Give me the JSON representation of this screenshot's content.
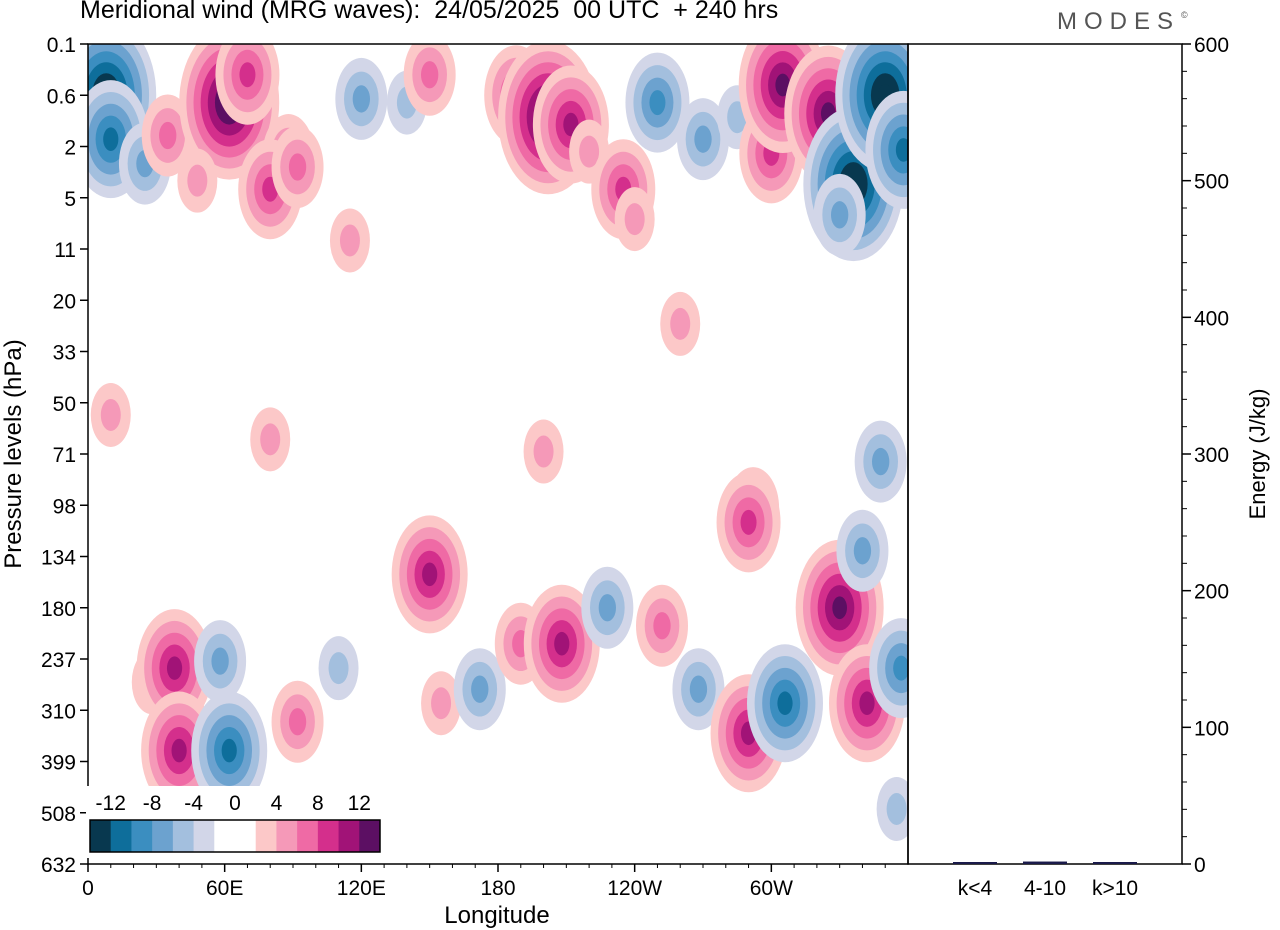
{
  "header": {
    "title": "Meridional wind (MRG waves):  24/05/2025  00 UTC  + 240 hrs",
    "brand": "MODES",
    "brand_mark": "©"
  },
  "colors": {
    "neg": [
      "#08384f",
      "#0e6e9b",
      "#3b8ec0",
      "#6ca2cf",
      "#a3bfde",
      "#d2d6e8"
    ],
    "pos": [
      "#fcc8c8",
      "#f599b8",
      "#ef6aa5",
      "#d42f8c",
      "#a11377",
      "#5c0f63"
    ],
    "zero": "#ffffff"
  },
  "chart_data": [
    {
      "type": "heatmap",
      "title": "Meridional wind (MRG waves):  24/05/2025  00 UTC  + 240 hrs",
      "xlabel": "Longitude",
      "ylabel": "Pressure levels (hPa)",
      "x_ticks": [
        "0",
        "60E",
        "120E",
        "180",
        "120W",
        "60W"
      ],
      "x_tick_degrees": [
        0,
        60,
        120,
        180,
        240,
        300
      ],
      "xlim": [
        0,
        360
      ],
      "y_ticks": [
        "0.1",
        "0.6",
        "2",
        "5",
        "11",
        "20",
        "33",
        "50",
        "71",
        "98",
        "134",
        "180",
        "237",
        "310",
        "399",
        "508",
        "632"
      ],
      "colorbar": {
        "labels": [
          "-12",
          "-8",
          "-4",
          "0",
          "4",
          "8",
          "12"
        ],
        "levels": [
          -14,
          -12,
          -10,
          -8,
          -6,
          -4,
          -2,
          0,
          2,
          4,
          6,
          8,
          10,
          12,
          14
        ]
      },
      "features": [
        {
          "lon": 8,
          "level": 0.6,
          "value": -14
        },
        {
          "lon": 10,
          "level": 1.8,
          "value": -10
        },
        {
          "lon": 25,
          "level": 3,
          "value": -6
        },
        {
          "lon": 35,
          "level": 1.7,
          "value": 6
        },
        {
          "lon": 62,
          "level": 0.8,
          "value": 14
        },
        {
          "lon": 70,
          "level": 0.4,
          "value": 8
        },
        {
          "lon": 48,
          "level": 4,
          "value": 4
        },
        {
          "lon": 88,
          "level": 2.5,
          "value": 6
        },
        {
          "lon": 80,
          "level": 4.5,
          "value": 8
        },
        {
          "lon": 92,
          "level": 3.2,
          "value": 6
        },
        {
          "lon": 120,
          "level": 0.7,
          "value": -6
        },
        {
          "lon": 140,
          "level": 0.8,
          "value": -4
        },
        {
          "lon": 150,
          "level": 0.4,
          "value": 6
        },
        {
          "lon": 188,
          "level": 0.6,
          "value": 8
        },
        {
          "lon": 202,
          "level": 1.2,
          "value": 14
        },
        {
          "lon": 212,
          "level": 1.4,
          "value": 10
        },
        {
          "lon": 220,
          "level": 2.3,
          "value": 4
        },
        {
          "lon": 235,
          "level": 4.5,
          "value": 8
        },
        {
          "lon": 240,
          "level": 7.5,
          "value": 4
        },
        {
          "lon": 250,
          "level": 0.8,
          "value": -8
        },
        {
          "lon": 270,
          "level": 1.8,
          "value": -6
        },
        {
          "lon": 285,
          "level": 1.2,
          "value": -4
        },
        {
          "lon": 300,
          "level": 2.4,
          "value": 8
        },
        {
          "lon": 305,
          "level": 0.5,
          "value": 12
        },
        {
          "lon": 325,
          "level": 1.1,
          "value": 12
        },
        {
          "lon": 336,
          "level": 4.2,
          "value": -14
        },
        {
          "lon": 350,
          "level": 0.6,
          "value": -14
        },
        {
          "lon": 358,
          "level": 2.2,
          "value": -10
        },
        {
          "lon": 330,
          "level": 7,
          "value": -6
        },
        {
          "lon": 115,
          "level": 10,
          "value": 4
        },
        {
          "lon": 260,
          "level": 26,
          "value": 4
        },
        {
          "lon": 10,
          "level": 55,
          "value": 4
        },
        {
          "lon": 80,
          "level": 65,
          "value": 4
        },
        {
          "lon": 200,
          "level": 70,
          "value": 4
        },
        {
          "lon": 292,
          "level": 100,
          "value": 6
        },
        {
          "lon": 348,
          "level": 75,
          "value": -6
        },
        {
          "lon": 28,
          "level": 270,
          "value": 4
        },
        {
          "lon": 38,
          "level": 250,
          "value": 10
        },
        {
          "lon": 40,
          "level": 380,
          "value": 10
        },
        {
          "lon": 58,
          "level": 240,
          "value": -6
        },
        {
          "lon": 62,
          "level": 380,
          "value": -10
        },
        {
          "lon": 92,
          "level": 330,
          "value": 6
        },
        {
          "lon": 110,
          "level": 250,
          "value": -4
        },
        {
          "lon": 150,
          "level": 150,
          "value": 10
        },
        {
          "lon": 155,
          "level": 300,
          "value": 4
        },
        {
          "lon": 172,
          "level": 280,
          "value": -6
        },
        {
          "lon": 190,
          "level": 220,
          "value": 6
        },
        {
          "lon": 208,
          "level": 220,
          "value": 10
        },
        {
          "lon": 228,
          "level": 180,
          "value": -6
        },
        {
          "lon": 252,
          "level": 200,
          "value": 6
        },
        {
          "lon": 268,
          "level": 280,
          "value": -6
        },
        {
          "lon": 290,
          "level": 350,
          "value": 10
        },
        {
          "lon": 290,
          "level": 110,
          "value": 8
        },
        {
          "lon": 306,
          "level": 300,
          "value": -10
        },
        {
          "lon": 330,
          "level": 180,
          "value": 12
        },
        {
          "lon": 342,
          "level": 300,
          "value": 10
        },
        {
          "lon": 340,
          "level": 130,
          "value": -6
        },
        {
          "lon": 357,
          "level": 250,
          "value": -8
        },
        {
          "lon": 355,
          "level": 500,
          "value": -4
        }
      ]
    },
    {
      "type": "bar",
      "categories": [
        "k<4",
        "4-10",
        "k>10"
      ],
      "values": [
        0.3,
        1.8,
        0.3
      ],
      "ylabel": "Energy (J/kg)",
      "ylim": [
        0,
        600
      ],
      "y_ticks": [
        "0",
        "100",
        "200",
        "300",
        "400",
        "500",
        "600"
      ],
      "y_tick_values": [
        0,
        100,
        200,
        300,
        400,
        500,
        600
      ],
      "bar_color": "#1a1a4a"
    }
  ]
}
